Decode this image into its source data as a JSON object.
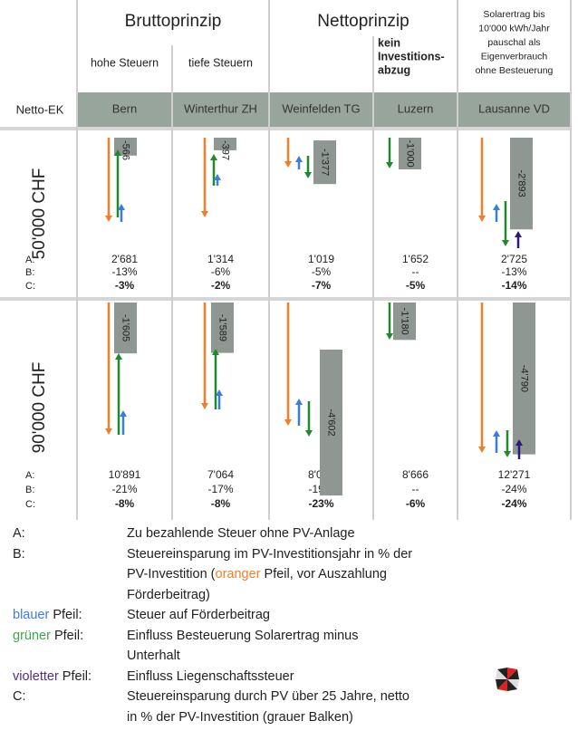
{
  "header": {
    "groups": [
      {
        "title": "Bruttoprinzip",
        "span": [
          0,
          1
        ]
      },
      {
        "title": "Nettoprinzip",
        "span": [
          2,
          3
        ]
      }
    ],
    "row_label_header": "Netto-EK"
  },
  "columns": [
    {
      "city": "Bern",
      "note": [
        "hohe Steuern"
      ]
    },
    {
      "city": "Winterthur ZH",
      "note": [
        "tiefe Steuern"
      ]
    },
    {
      "city": "Weinfelden TG"
    },
    {
      "city": "Luzern",
      "note": [
        "kein",
        "Investitions-",
        "abzug"
      ],
      "bold": true
    },
    {
      "city": "Lausanne VD",
      "note": [
        "Solarertrag bis",
        "10'000 kWh/Jahr",
        "pauschal als",
        "Eigenverbrauch",
        "ohne Besteuerung"
      ]
    }
  ],
  "row_keys": [
    "A:",
    "B:",
    "C:"
  ],
  "rows": [
    {
      "label": "50'000 CHF",
      "cells": [
        {
          "A": "2'681",
          "B": "-13%",
          "C": "-3%",
          "bar": -566
        },
        {
          "A": "1'314",
          "B": "-6%",
          "C": "-2%",
          "bar": -397
        },
        {
          "A": "1'019",
          "B": "-5%",
          "C": "-7%",
          "bar": {
            "value": -1377,
            "label": "-1'377"
          }
        },
        {
          "A": "1'652",
          "B": "--",
          "C": "-5%",
          "bar": {
            "value": -1000,
            "label": "-1'000"
          }
        },
        {
          "A": "2'725",
          "B": "-13%",
          "C": "-14%",
          "bar": {
            "value": -2893,
            "label": "-2'893"
          }
        }
      ]
    },
    {
      "label": "90'000 CHF",
      "cells": [
        {
          "A": "10'891",
          "B": "-21%",
          "C": "-8%",
          "bar": {
            "value": -1605,
            "label": "-1'605"
          }
        },
        {
          "A": "7'064",
          "B": "-17%",
          "C": "-8%",
          "bar": {
            "value": -1589,
            "label": "-1'589"
          }
        },
        {
          "A": "8'005",
          "B": "-19%",
          "C": "-23%",
          "bar": {
            "value": -4602,
            "label": "-4'602"
          }
        },
        {
          "A": "8'666",
          "B": "--",
          "C": "-6%",
          "bar": {
            "value": -1180,
            "label": "-1'180"
          }
        },
        {
          "A": "12'271",
          "B": "-24%",
          "C": "-24%",
          "bar": {
            "value": -4790,
            "label": "-4'790"
          }
        }
      ]
    }
  ],
  "legend": [
    {
      "key": [
        "A:"
      ],
      "lines": [
        [
          "Zu bezahlende Steuer ohne PV-Anlage"
        ]
      ]
    },
    {
      "key": [
        "B:"
      ],
      "lines": [
        [
          "Steuereinsparung im PV-Investitionsjahr in % der"
        ],
        [
          "PV-Investition (",
          "oranger",
          " Pfeil, vor Auszahlung"
        ],
        [
          "Förderbeitrag)"
        ]
      ]
    },
    {
      "key": [
        "blauer",
        " Pfeil:"
      ],
      "lines": [
        [
          "Steuer auf Förderbeitrag"
        ]
      ]
    },
    {
      "key": [
        "grüner",
        " Pfeil:"
      ],
      "lines": [
        [
          "Einfluss Besteuerung Solarertrag minus"
        ],
        [
          "Unterhalt"
        ]
      ]
    },
    {
      "key": [
        "violetter",
        " Pfeil:"
      ],
      "lines": [
        [
          "Einfluss Liegenschaftssteuer"
        ]
      ]
    },
    {
      "key": [
        "C:"
      ],
      "lines": [
        [
          "Steuereinsparung durch PV über 25 Jahre, netto"
        ],
        [
          "in % der PV-Investition (grauer Balken)"
        ]
      ]
    }
  ]
}
